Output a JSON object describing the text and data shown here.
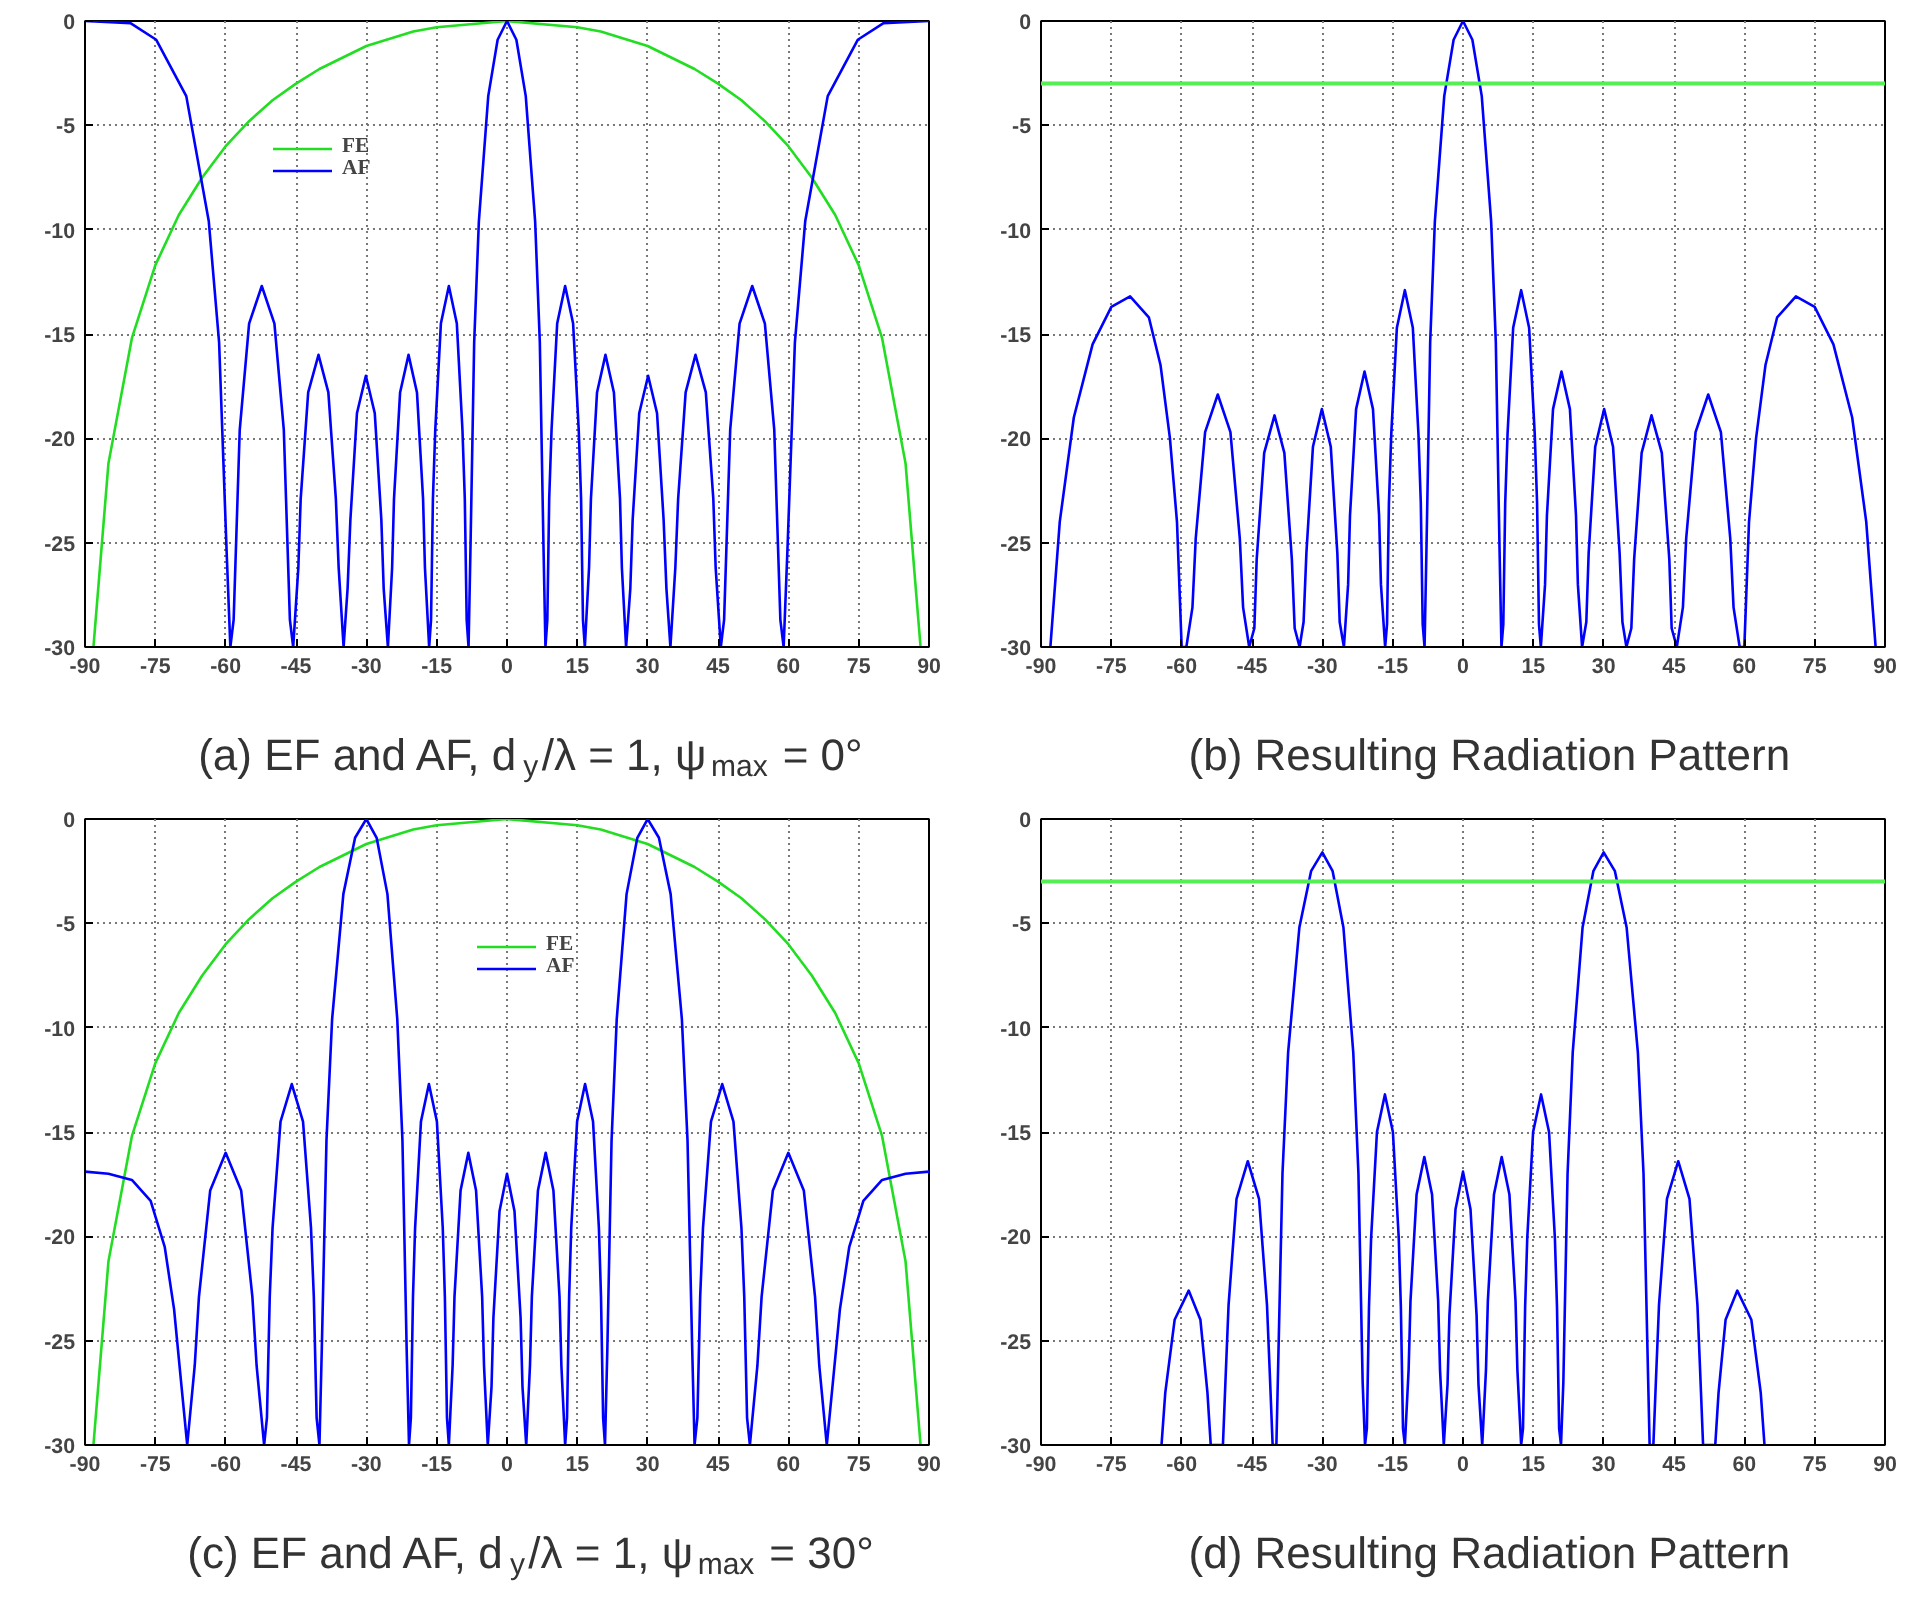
{
  "chart_data": [
    {
      "type": "line",
      "xlabel": "(a) EF and AF, d$_{y}$/λ = 1, ψ$_{max}$ = 0°",
      "xlim": [
        -90,
        90
      ],
      "ylim": [
        -30,
        0
      ],
      "xticks": [
        -90,
        -75,
        -60,
        -45,
        -30,
        -15,
        0,
        15,
        30,
        45,
        60,
        75,
        90
      ],
      "yticks": [
        -30,
        -25,
        -20,
        -15,
        -10,
        -5,
        0
      ],
      "grid": true,
      "legend": "top left",
      "series": [
        {
          "name": "FE",
          "color": "#22dd22",
          "x": [
            -88.2,
            -85,
            -80,
            -75,
            -70,
            -65,
            -60,
            -55,
            -50,
            -45,
            -40,
            -30,
            -20,
            -15,
            0,
            15,
            20,
            30,
            40,
            45,
            50,
            55,
            60,
            65,
            70,
            75,
            80,
            85,
            88.2
          ],
          "values": [
            -30,
            -21.2,
            -15.2,
            -11.7,
            -9.3,
            -7.5,
            -6.0,
            -4.8,
            -3.8,
            -3.0,
            -2.3,
            -1.2,
            -0.5,
            -0.3,
            0,
            -0.3,
            -0.5,
            -1.2,
            -2.3,
            -3.0,
            -3.8,
            -4.8,
            -6.0,
            -7.5,
            -9.3,
            -11.7,
            -15.2,
            -21.2,
            -30
          ]
        },
        {
          "name": "AF",
          "color": "#0000ff",
          "x": [
            -90,
            -80.3,
            -74.8,
            -68.4,
            -63.6,
            -61.4,
            -59.8,
            -59,
            -58.3,
            -57.0,
            -55.0,
            -52.3,
            -49.6,
            -47.6,
            -46.3,
            -45.6,
            -44.5,
            -44.0,
            -42.4,
            -40.2,
            -38.1,
            -36.5,
            -35.9,
            -34.85,
            -34.0,
            -33.4,
            -32.0,
            -30.1,
            -28.2,
            -26.8,
            -26.3,
            -25.4,
            -24.5,
            -24.1,
            -22.8,
            -21.0,
            -19.2,
            -17.9,
            -17.5,
            -16.6,
            -16.2,
            -15.8,
            -15.3,
            -14.1,
            -12.4,
            -10.7,
            -9.5,
            -9.0,
            -8.6,
            -8.2,
            -7.8,
            -7,
            -6,
            -4,
            -2,
            0,
            2,
            4,
            6,
            7,
            7.8,
            8.2,
            8.6,
            9.0,
            9.5,
            10.7,
            12.4,
            14.1,
            15.3,
            15.8,
            16.2,
            16.6,
            17.5,
            17.9,
            19.2,
            21.0,
            22.8,
            24.1,
            24.5,
            25.4,
            26.3,
            26.8,
            28.2,
            30.1,
            32.0,
            33.4,
            34.0,
            34.85,
            35.9,
            36.5,
            38.1,
            40.2,
            42.4,
            44.0,
            44.5,
            45.6,
            46.3,
            47.6,
            49.6,
            52.3,
            55.0,
            57.0,
            58.3,
            59,
            59.8,
            61.4,
            63.6,
            68.4,
            74.8,
            80.3,
            90
          ],
          "values": [
            0,
            -0.1,
            -0.9,
            -3.6,
            -9.6,
            -15.4,
            -25.4,
            -30,
            -28.7,
            -19.6,
            -14.5,
            -12.7,
            -14.5,
            -19.6,
            -28.7,
            -30,
            -26.2,
            -22.9,
            -17.8,
            -16,
            -17.8,
            -22.9,
            -26.2,
            -30,
            -27.2,
            -23.9,
            -18.8,
            -17,
            -18.8,
            -23.9,
            -27.2,
            -30,
            -26.2,
            -22.9,
            -17.8,
            -16,
            -17.8,
            -22.9,
            -26.2,
            -30,
            -28.7,
            -22.9,
            -19.6,
            -14.5,
            -12.7,
            -14.5,
            -19.6,
            -22.9,
            -28.7,
            -30,
            -25.4,
            -15.4,
            -9.6,
            -3.6,
            -0.9,
            0,
            -0.9,
            -3.6,
            -9.6,
            -15.4,
            -25.4,
            -30,
            -28.7,
            -22.9,
            -19.6,
            -14.5,
            -12.7,
            -14.5,
            -19.6,
            -22.9,
            -28.7,
            -30,
            -26.2,
            -22.9,
            -17.8,
            -16,
            -17.8,
            -22.9,
            -26.2,
            -30,
            -27.2,
            -23.9,
            -18.8,
            -17,
            -18.8,
            -23.9,
            -27.2,
            -30,
            -26.2,
            -22.9,
            -17.8,
            -16,
            -17.8,
            -22.9,
            -26.2,
            -30,
            -28.7,
            -19.6,
            -14.5,
            -12.7,
            -14.5,
            -19.6,
            -28.7,
            -30,
            -25.4,
            -15.4,
            -9.6,
            -3.6,
            -0.9,
            -0.1,
            0
          ]
        }
      ]
    },
    {
      "type": "line",
      "xlabel": "(b) Resulting Radiation Pattern",
      "xlim": [
        -90,
        90
      ],
      "ylim": [
        -30,
        0
      ],
      "xticks": [
        -90,
        -75,
        -60,
        -45,
        -30,
        -15,
        0,
        15,
        30,
        45,
        60,
        75,
        90
      ],
      "yticks": [
        -30,
        -25,
        -20,
        -15,
        -10,
        -5,
        0
      ],
      "grid": true,
      "ref_lines": [
        {
          "axis": "y",
          "value": -3,
          "color": "#55ee55"
        }
      ],
      "series": [
        {
          "color": "#0000ff",
          "x": [
            -88,
            -86,
            -83,
            -79,
            -75,
            -71,
            -67,
            -64.5,
            -62.5,
            -61,
            -60,
            -59,
            -57.7,
            -57.0,
            -55.0,
            -52.3,
            -49.6,
            -47.6,
            -46.9,
            -45.6,
            -44.5,
            -44.0,
            -42.4,
            -40.2,
            -38.1,
            -36.5,
            -35.9,
            -34.85,
            -34.0,
            -33.4,
            -32.0,
            -30.1,
            -28.2,
            -26.8,
            -26.3,
            -25.4,
            -24.5,
            -24.1,
            -22.8,
            -21.0,
            -19.2,
            -17.9,
            -17.5,
            -16.6,
            -16.2,
            -15.8,
            -15.3,
            -14.1,
            -12.4,
            -10.7,
            -9.5,
            -9.0,
            -8.6,
            -8.2,
            -7.8,
            -7,
            -6,
            -4,
            -2,
            0,
            2,
            4,
            6,
            7,
            7.8,
            8.2,
            8.6,
            9.0,
            9.5,
            10.7,
            12.4,
            14.1,
            15.3,
            15.8,
            16.2,
            16.6,
            17.5,
            17.9,
            19.2,
            21.0,
            22.8,
            24.1,
            24.5,
            25.4,
            26.3,
            26.8,
            28.2,
            30.1,
            32.0,
            33.4,
            34.0,
            34.85,
            35.9,
            36.5,
            38.1,
            40.2,
            42.4,
            44.0,
            44.5,
            45.6,
            46.9,
            47.6,
            49.6,
            52.3,
            55.0,
            57.0,
            57.7,
            59,
            60,
            61,
            62.5,
            64.5,
            67,
            71,
            75,
            79,
            83,
            86,
            88
          ],
          "values": [
            -30,
            -24,
            -19,
            -15.5,
            -13.7,
            -13.2,
            -14.2,
            -16.5,
            -20,
            -24,
            -30,
            -30,
            -28.1,
            -24.8,
            -19.7,
            -17.9,
            -19.7,
            -24.8,
            -28.1,
            -30,
            -29.1,
            -25.8,
            -20.7,
            -18.9,
            -20.7,
            -25.8,
            -29.1,
            -30,
            -28.8,
            -25.5,
            -20.4,
            -18.6,
            -20.4,
            -25.5,
            -28.8,
            -30,
            -27.0,
            -23.7,
            -18.6,
            -16.8,
            -18.6,
            -23.7,
            -27.0,
            -30,
            -28.9,
            -23.1,
            -19.8,
            -14.7,
            -12.9,
            -14.7,
            -19.8,
            -23.1,
            -28.9,
            -30,
            -25.4,
            -15.4,
            -9.6,
            -3.6,
            -0.9,
            0,
            -0.9,
            -3.6,
            -9.6,
            -15.4,
            -25.4,
            -30,
            -28.9,
            -23.1,
            -19.8,
            -14.7,
            -12.9,
            -14.7,
            -19.8,
            -23.1,
            -28.9,
            -30,
            -27.0,
            -23.7,
            -18.6,
            -16.8,
            -18.6,
            -23.7,
            -27.0,
            -30,
            -28.8,
            -25.5,
            -20.4,
            -18.6,
            -20.4,
            -25.5,
            -28.8,
            -30,
            -29.1,
            -25.8,
            -20.7,
            -18.9,
            -20.7,
            -25.8,
            -29.1,
            -30,
            -28.1,
            -24.8,
            -19.7,
            -17.9,
            -19.7,
            -24.8,
            -28.1,
            -30,
            -30,
            -24,
            -20,
            -16.5,
            -14.2,
            -13.2,
            -13.7,
            -15.5,
            -19,
            -24,
            -30
          ]
        }
      ]
    },
    {
      "type": "line",
      "xlabel": "(c) EF and AF, d$_{y}$/λ = 1, ψ$_{max}$ = 30°",
      "xlim": [
        -90,
        90
      ],
      "ylim": [
        -30,
        0
      ],
      "xticks": [
        -90,
        -75,
        -60,
        -45,
        -30,
        -15,
        0,
        15,
        30,
        45,
        60,
        75,
        90
      ],
      "yticks": [
        -30,
        -25,
        -20,
        -15,
        -10,
        -5,
        0
      ],
      "grid": true,
      "legend": "top",
      "series": [
        {
          "name": "FE",
          "color": "#22dd22",
          "x": [
            -88.2,
            -85,
            -80,
            -75,
            -70,
            -65,
            -60,
            -55,
            -50,
            -45,
            -40,
            -30,
            -20,
            -15,
            0,
            15,
            20,
            30,
            40,
            45,
            50,
            55,
            60,
            65,
            70,
            75,
            80,
            85,
            88.2
          ],
          "values": [
            -30,
            -21.2,
            -15.2,
            -11.7,
            -9.3,
            -7.5,
            -6.0,
            -4.8,
            -3.8,
            -3.0,
            -2.3,
            -1.2,
            -0.5,
            -0.3,
            0,
            -0.3,
            -0.5,
            -1.2,
            -2.3,
            -3.0,
            -3.8,
            -4.8,
            -6.0,
            -7.5,
            -9.3,
            -11.7,
            -15.2,
            -21.2,
            -30
          ]
        },
        {
          "name": "AF",
          "color": "#0000ff",
          "x": [
            -90,
            -85,
            -80,
            -76,
            -73,
            -71,
            -69.5,
            -68.2,
            -66.6,
            -65.7,
            -63.3,
            -60.0,
            -56.7,
            -54.3,
            -53.4,
            -51.8,
            -51.2,
            -50.6,
            -50.0,
            -48.3,
            -45.9,
            -43.5,
            -41.8,
            -41.2,
            -40.6,
            -40,
            -39.5,
            -38.5,
            -37.3,
            -34.9,
            -32.4,
            -30,
            -27.8,
            -25.5,
            -23.4,
            -22.3,
            -21.4,
            -20.9,
            -20.5,
            -20.05,
            -19.6,
            -18.35,
            -16.65,
            -14.95,
            -13.7,
            -13.25,
            -12.8,
            -12.4,
            -11.6,
            -11.2,
            -9.9,
            -8.25,
            -6.6,
            -5.3,
            -4.9,
            -4.1,
            -3.3,
            -2.9,
            -1.6,
            0,
            1.6,
            2.9,
            3.3,
            4.1,
            4.9,
            5.3,
            6.6,
            8.25,
            9.9,
            11.2,
            11.6,
            12.4,
            12.8,
            13.25,
            13.7,
            14.95,
            16.65,
            18.35,
            19.6,
            20.05,
            20.5,
            20.9,
            21.4,
            22.3,
            23.4,
            25.5,
            27.8,
            30,
            32.4,
            34.9,
            37.3,
            38.5,
            39.5,
            40,
            40.6,
            41.2,
            41.8,
            43.5,
            45.9,
            48.3,
            50.0,
            50.6,
            51.2,
            51.8,
            53.4,
            54.3,
            56.7,
            60.0,
            63.3,
            65.7,
            66.6,
            68.2,
            69.5,
            71,
            73,
            76,
            80,
            85,
            90
          ],
          "values": [
            -16.9,
            -17.0,
            -17.3,
            -18.3,
            -20.5,
            -23.5,
            -27,
            -30,
            -26.2,
            -22.9,
            -17.8,
            -16,
            -17.8,
            -22.9,
            -26.2,
            -30,
            -28.7,
            -22.9,
            -19.6,
            -14.5,
            -12.7,
            -14.5,
            -19.6,
            -22.9,
            -28.7,
            -30,
            -25.4,
            -15.4,
            -9.6,
            -3.6,
            -0.9,
            0,
            -0.9,
            -3.6,
            -9.6,
            -15.4,
            -25.4,
            -30,
            -28.7,
            -22.9,
            -19.6,
            -14.5,
            -12.7,
            -14.5,
            -19.6,
            -22.9,
            -28.7,
            -30,
            -26.2,
            -22.9,
            -17.8,
            -16,
            -17.8,
            -22.9,
            -26.2,
            -30,
            -27.2,
            -23.9,
            -18.8,
            -17,
            -18.8,
            -23.9,
            -27.2,
            -30,
            -26.2,
            -22.9,
            -17.8,
            -16,
            -17.8,
            -22.9,
            -26.2,
            -30,
            -28.7,
            -22.9,
            -19.6,
            -14.5,
            -12.7,
            -14.5,
            -19.6,
            -22.9,
            -28.7,
            -30,
            -25.4,
            -15.4,
            -9.6,
            -3.6,
            -0.9,
            0,
            -0.9,
            -3.6,
            -9.6,
            -15.4,
            -25.4,
            -30,
            -28.7,
            -22.9,
            -19.6,
            -14.5,
            -12.7,
            -14.5,
            -19.6,
            -22.9,
            -28.7,
            -30,
            -26.2,
            -22.9,
            -17.8,
            -16,
            -17.8,
            -22.9,
            -26.2,
            -30,
            -27,
            -23.5,
            -20.5,
            -18.3,
            -17.3,
            -17.0,
            -16.9
          ]
        }
      ]
    },
    {
      "type": "line",
      "xlabel": "(d) Resulting Radiation Pattern",
      "xlim": [
        -90,
        90
      ],
      "ylim": [
        -30,
        0
      ],
      "xticks": [
        -90,
        -75,
        -60,
        -45,
        -30,
        -15,
        0,
        15,
        30,
        45,
        60,
        75,
        90
      ],
      "yticks": [
        -30,
        -25,
        -20,
        -15,
        -10,
        -5,
        0
      ],
      "grid": true,
      "ref_lines": [
        {
          "axis": "y",
          "value": -3,
          "color": "#55ee55"
        }
      ],
      "series": [
        {
          "color": "#0000ff",
          "x": [
            -64.3,
            -63.5,
            -61.5,
            -58.5,
            -56,
            -54.5,
            -53.8,
            -51.2,
            -50.6,
            -50.0,
            -48.3,
            -45.9,
            -43.5,
            -41.8,
            -41.2,
            -40.6,
            -39.8,
            -39.5,
            -38.5,
            -37.3,
            -34.9,
            -32.4,
            -30,
            -27.8,
            -25.5,
            -23.4,
            -22.3,
            -21.4,
            -20.9,
            -20.5,
            -20.05,
            -19.6,
            -18.35,
            -16.65,
            -14.95,
            -13.7,
            -13.25,
            -12.8,
            -12.4,
            -11.6,
            -11.2,
            -9.9,
            -8.25,
            -6.6,
            -5.3,
            -4.9,
            -4.1,
            -3.3,
            -2.9,
            -1.6,
            0,
            1.6,
            2.9,
            3.3,
            4.1,
            4.9,
            5.3,
            6.6,
            8.25,
            9.9,
            11.2,
            11.6,
            12.4,
            12.8,
            13.25,
            13.7,
            14.95,
            16.65,
            18.35,
            19.6,
            20.05,
            20.5,
            20.9,
            21.4,
            22.3,
            23.4,
            25.5,
            27.8,
            30,
            32.4,
            34.9,
            37.3,
            38.5,
            39.5,
            39.8,
            40.6,
            41.2,
            41.8,
            43.5,
            45.9,
            48.3,
            50.0,
            50.6,
            51.2,
            53.8,
            54.5,
            56,
            58.5,
            61.5,
            63.5,
            64.3
          ],
          "values": [
            -30,
            -27.5,
            -24,
            -22.6,
            -24,
            -27.5,
            -30,
            -30,
            -26.6,
            -23.3,
            -18.2,
            -16.4,
            -18.2,
            -23.3,
            -26.6,
            -30,
            -30,
            -27.0,
            -17.0,
            -11.2,
            -5.2,
            -2.5,
            -1.6,
            -2.5,
            -5.2,
            -11.2,
            -17.0,
            -27.0,
            -30,
            -29.2,
            -23.4,
            -20.1,
            -15.0,
            -13.2,
            -15.0,
            -20.1,
            -23.4,
            -29.2,
            -30,
            -26.4,
            -23.1,
            -18.0,
            -16.2,
            -18.0,
            -23.1,
            -26.4,
            -30,
            -27.1,
            -23.8,
            -18.7,
            -16.9,
            -18.7,
            -23.8,
            -27.1,
            -30,
            -26.4,
            -23.1,
            -18.0,
            -16.2,
            -18.0,
            -23.1,
            -26.4,
            -30,
            -29.2,
            -23.4,
            -20.1,
            -15.0,
            -13.2,
            -15.0,
            -20.1,
            -23.4,
            -29.2,
            -30,
            -27.0,
            -17.0,
            -11.2,
            -5.2,
            -2.5,
            -1.6,
            -2.5,
            -5.2,
            -11.2,
            -17.0,
            -27.0,
            -30,
            -30,
            -26.6,
            -23.3,
            -18.2,
            -16.4,
            -18.2,
            -23.3,
            -26.6,
            -30,
            -30,
            -27.5,
            -24,
            -22.6,
            -24,
            -27.5,
            -30
          ]
        }
      ]
    }
  ]
}
